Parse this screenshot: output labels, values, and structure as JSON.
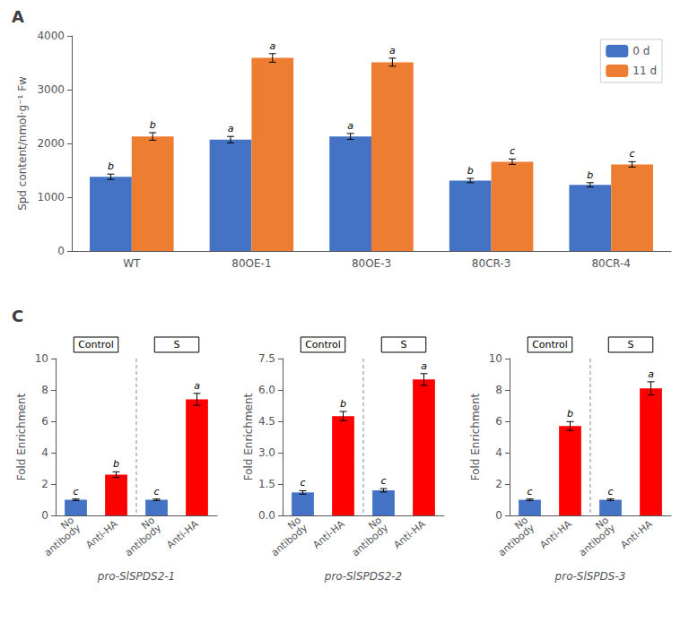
{
  "chart_data": [
    {
      "type": "bar",
      "title": "A",
      "categories": [
        "WT",
        "80OE-1",
        "80OE-3",
        "80CR-3",
        "80CR-4"
      ],
      "series": [
        {
          "name": "0 d",
          "color": "#4472C4",
          "values": [
            1380,
            2070,
            2130,
            1310,
            1230
          ],
          "errors": [
            50,
            60,
            55,
            40,
            40
          ],
          "letters": [
            "b",
            "a",
            "a",
            "b",
            "b"
          ]
        },
        {
          "name": "11 d",
          "color": "#ED7D31",
          "values": [
            2130,
            3590,
            3510,
            1660,
            1610
          ],
          "errors": [
            70,
            80,
            75,
            50,
            50
          ],
          "letters": [
            "b",
            "a",
            "a",
            "c",
            "c"
          ]
        }
      ],
      "ylabel": "Spd content/nmol·g⁻¹ Fw",
      "ylim": [
        0,
        4000
      ],
      "yticks": [
        0,
        1000,
        2000,
        3000,
        4000
      ],
      "legend": "upper right",
      "grid": false
    },
    {
      "type": "bar",
      "title": "C",
      "xlabel": "pro-SlSPDS2-1",
      "ylabel": "Fold Enrichment",
      "categories": [
        "No\nantibody",
        "Anti-HA",
        "No\nantibody",
        "Anti-HA"
      ],
      "values": [
        1.0,
        2.6,
        1.0,
        7.4
      ],
      "colors": [
        "#4472C4",
        "#FF0000",
        "#4472C4",
        "#FF0000"
      ],
      "errors": [
        0.05,
        0.18,
        0.05,
        0.38
      ],
      "letters": [
        "c",
        "b",
        "c",
        "a"
      ],
      "groups": [
        "Control",
        "S"
      ],
      "ylim": [
        0,
        10
      ],
      "yticks": [
        0,
        2,
        4,
        6,
        8,
        10
      ],
      "grid": false
    },
    {
      "type": "bar",
      "xlabel": "pro-SlSPDS2-2",
      "ylabel": "Fold Enrichment",
      "categories": [
        "No\nantibody",
        "Anti-HA",
        "No\nantibody",
        "Anti-HA"
      ],
      "values": [
        1.1,
        4.75,
        1.2,
        6.5
      ],
      "colors": [
        "#4472C4",
        "#FF0000",
        "#4472C4",
        "#FF0000"
      ],
      "errors": [
        0.08,
        0.22,
        0.08,
        0.28
      ],
      "letters": [
        "c",
        "b",
        "c",
        "a"
      ],
      "groups": [
        "Control",
        "S"
      ],
      "ylim": [
        0,
        7.5
      ],
      "yticks": [
        {
          "value": 0,
          "label": "0.0"
        },
        1.5,
        {
          "value": 3.0,
          "label": "3.0"
        },
        4.5,
        {
          "value": 6.0,
          "label": "6.0"
        },
        7.5
      ],
      "grid": false
    },
    {
      "type": "bar",
      "xlabel": "pro-SlSPDS-3",
      "ylabel": "Fold Enrichment",
      "categories": [
        "No\nantibody",
        "Anti-HA",
        "No\nantibody",
        "Anti-HA"
      ],
      "values": [
        1.0,
        5.7,
        1.0,
        8.1
      ],
      "colors": [
        "#4472C4",
        "#FF0000",
        "#4472C4",
        "#FF0000"
      ],
      "errors": [
        0.05,
        0.28,
        0.05,
        0.42
      ],
      "letters": [
        "c",
        "b",
        "c",
        "a"
      ],
      "groups": [
        "Control",
        "S"
      ],
      "ylim": [
        0,
        10
      ],
      "yticks": [
        0,
        2,
        4,
        6,
        8,
        10
      ],
      "grid": false
    }
  ]
}
